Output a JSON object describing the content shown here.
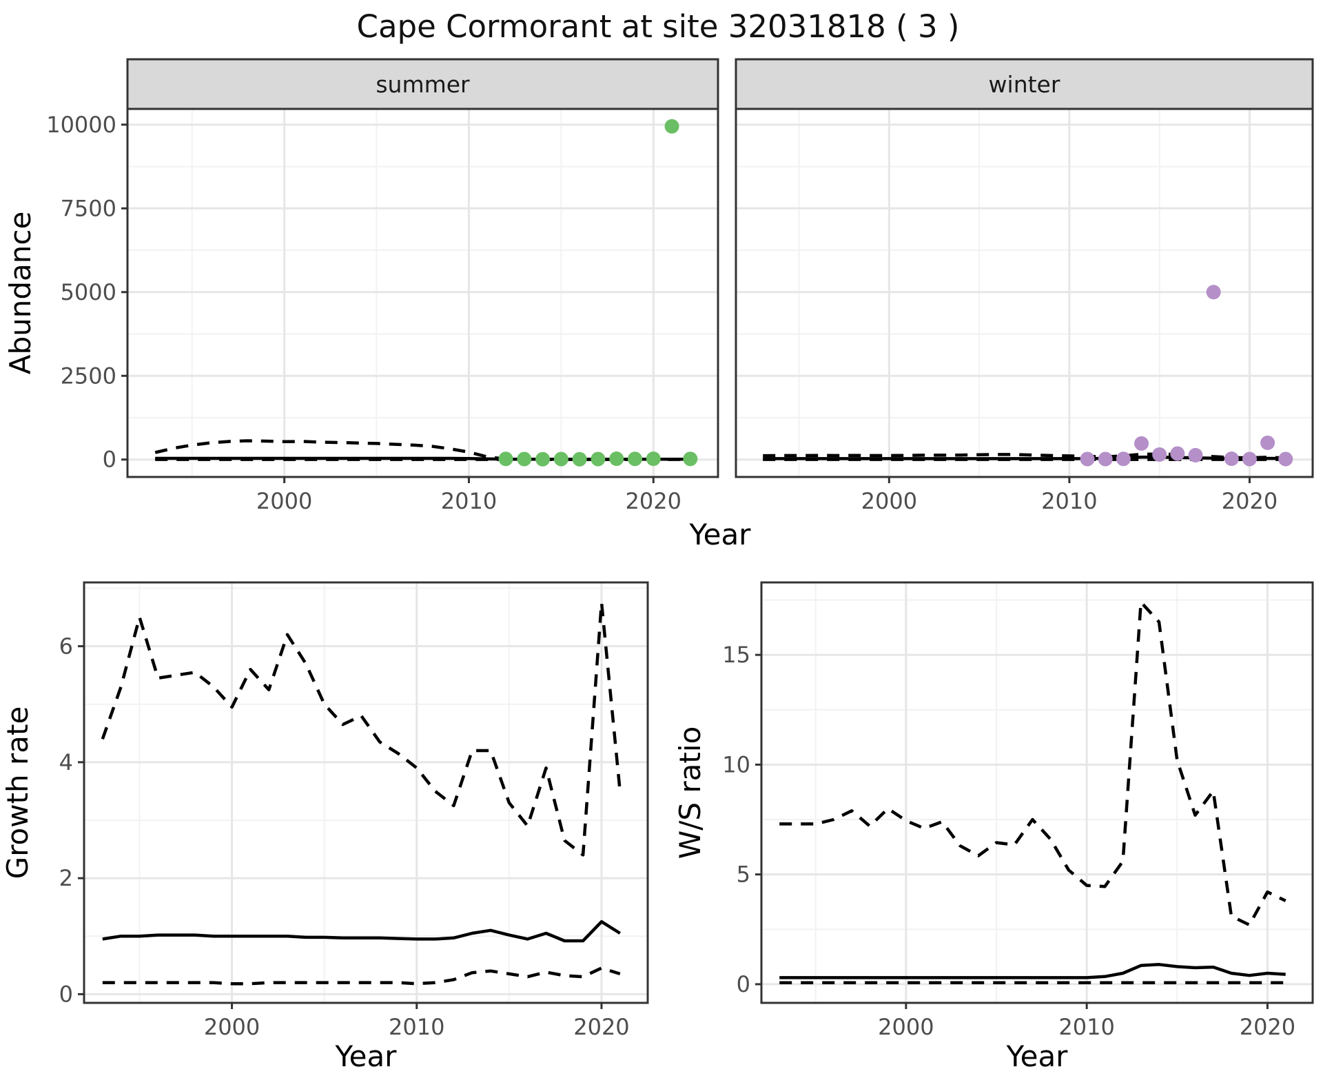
{
  "title": "Cape Cormorant at site 32031818 ( 3 )",
  "axes": {
    "abundance_ylabel": "Abundance",
    "top_xlabel": "Year",
    "growth_ylabel": "Growth rate",
    "growth_xlabel": "Year",
    "ws_ylabel": "W/S ratio",
    "ws_xlabel": "Year"
  },
  "colors": {
    "summer_points": "#6abf64",
    "winter_points": "#b48fc8",
    "line": "#000000",
    "strip_fill": "#d9d9d9",
    "panel_border": "#333333",
    "grid_major": "#e6e6e6",
    "grid_minor": "#f2f2f2",
    "tick_label": "#4d4d4d",
    "background": "#ffffff"
  },
  "chart_data": [
    {
      "id": "abundance_summer",
      "type": "line",
      "facet": "summer",
      "xlabel": "Year",
      "ylabel": "Abundance",
      "x_domain": [
        1991.5,
        2023.5
      ],
      "x_ticks": [
        2000,
        2010,
        2020
      ],
      "y_domain": [
        -520,
        10470
      ],
      "y_ticks": [
        0,
        2500,
        5000,
        7500,
        10000
      ],
      "grid": true,
      "legend": "none",
      "years": [
        1993,
        1994,
        1995,
        1996,
        1997,
        1998,
        1999,
        2000,
        2001,
        2002,
        2003,
        2004,
        2005,
        2006,
        2007,
        2008,
        2009,
        2010,
        2011,
        2012,
        2013,
        2014,
        2015,
        2016,
        2017,
        2018,
        2019,
        2020,
        2021,
        2022
      ],
      "series": [
        {
          "name": "upper_ci",
          "style": "dashed",
          "values": [
            210,
            340,
            430,
            500,
            540,
            560,
            550,
            535,
            540,
            520,
            510,
            495,
            480,
            455,
            430,
            395,
            320,
            220,
            80,
            15,
            8,
            8,
            8,
            8,
            8,
            8,
            8,
            8,
            8,
            8
          ]
        },
        {
          "name": "mean",
          "style": "solid",
          "values": [
            35,
            35,
            35,
            35,
            35,
            35,
            35,
            35,
            35,
            35,
            35,
            35,
            35,
            35,
            35,
            35,
            35,
            30,
            20,
            12,
            12,
            12,
            12,
            12,
            12,
            12,
            12,
            12,
            12,
            12
          ]
        },
        {
          "name": "lower_ci",
          "style": "dashed",
          "values": [
            2,
            2,
            2,
            2,
            2,
            2,
            2,
            2,
            2,
            2,
            2,
            2,
            2,
            2,
            2,
            2,
            2,
            2,
            2,
            2,
            2,
            2,
            2,
            2,
            2,
            2,
            2,
            2,
            2,
            2
          ]
        }
      ],
      "points": {
        "name": "observed_counts",
        "color_key": "summer_points",
        "x": [
          2012,
          2013,
          2014,
          2015,
          2016,
          2017,
          2018,
          2019,
          2020,
          2021,
          2022
        ],
        "y": [
          20,
          15,
          10,
          15,
          10,
          15,
          25,
          20,
          25,
          9950,
          20
        ]
      }
    },
    {
      "id": "abundance_winter",
      "type": "line",
      "facet": "winter",
      "xlabel": "Year",
      "ylabel": "Abundance",
      "x_domain": [
        1991.5,
        2023.5
      ],
      "x_ticks": [
        2000,
        2010,
        2020
      ],
      "y_domain": [
        -520,
        10470
      ],
      "y_ticks": [
        0,
        2500,
        5000,
        7500,
        10000
      ],
      "grid": true,
      "legend": "none",
      "years": [
        1993,
        1994,
        1995,
        1996,
        1997,
        1998,
        1999,
        2000,
        2001,
        2002,
        2003,
        2004,
        2005,
        2006,
        2007,
        2008,
        2009,
        2010,
        2011,
        2012,
        2013,
        2014,
        2015,
        2016,
        2017,
        2018,
        2019,
        2020,
        2021,
        2022
      ],
      "series": [
        {
          "name": "upper_ci",
          "style": "dashed",
          "values": [
            115,
            120,
            120,
            125,
            120,
            125,
            120,
            120,
            125,
            130,
            130,
            135,
            145,
            150,
            150,
            135,
            120,
            110,
            95,
            80,
            110,
            160,
            165,
            150,
            130,
            90,
            60,
            50,
            70,
            45
          ]
        },
        {
          "name": "mean",
          "style": "solid",
          "values": [
            28,
            28,
            28,
            28,
            28,
            28,
            28,
            28,
            28,
            28,
            28,
            28,
            28,
            28,
            28,
            28,
            28,
            28,
            28,
            35,
            55,
            70,
            70,
            60,
            50,
            40,
            32,
            30,
            35,
            30
          ]
        },
        {
          "name": "lower_ci",
          "style": "dashed",
          "values": [
            2,
            2,
            2,
            2,
            2,
            2,
            2,
            2,
            2,
            2,
            2,
            2,
            2,
            2,
            2,
            2,
            2,
            2,
            2,
            2,
            2,
            2,
            2,
            2,
            2,
            2,
            2,
            2,
            2,
            2
          ]
        }
      ],
      "points": {
        "name": "observed_counts",
        "color_key": "winter_points",
        "x": [
          2011,
          2012,
          2013,
          2014,
          2015,
          2016,
          2017,
          2018,
          2019,
          2020,
          2021,
          2022
        ],
        "y": [
          15,
          15,
          20,
          480,
          150,
          180,
          130,
          5000,
          25,
          15,
          500,
          15
        ]
      }
    },
    {
      "id": "growth_rate",
      "type": "line",
      "facet": null,
      "xlabel": "Year",
      "ylabel": "Growth rate",
      "x_domain": [
        1992,
        2022.5
      ],
      "x_ticks": [
        2000,
        2010,
        2020
      ],
      "y_domain": [
        -0.15,
        7.1
      ],
      "y_ticks": [
        0,
        2,
        4,
        6
      ],
      "grid": true,
      "legend": "none",
      "years": [
        1993,
        1994,
        1995,
        1996,
        1997,
        1998,
        1999,
        2000,
        2001,
        2002,
        2003,
        2004,
        2005,
        2006,
        2007,
        2008,
        2009,
        2010,
        2011,
        2012,
        2013,
        2014,
        2015,
        2016,
        2017,
        2018,
        2019,
        2020,
        2021
      ],
      "series": [
        {
          "name": "upper_ci",
          "style": "dashed",
          "values": [
            4.4,
            5.3,
            6.5,
            5.45,
            5.5,
            5.55,
            5.3,
            4.95,
            5.6,
            5.25,
            6.2,
            5.7,
            5.0,
            4.65,
            4.8,
            4.35,
            4.15,
            3.9,
            3.5,
            3.25,
            4.2,
            4.2,
            3.3,
            2.9,
            3.9,
            2.65,
            2.4,
            6.75,
            3.5
          ]
        },
        {
          "name": "mean",
          "style": "solid",
          "values": [
            0.95,
            1.0,
            1.0,
            1.02,
            1.02,
            1.02,
            1.0,
            1.0,
            1.0,
            1.0,
            1.0,
            0.98,
            0.98,
            0.97,
            0.97,
            0.97,
            0.96,
            0.95,
            0.95,
            0.97,
            1.05,
            1.1,
            1.02,
            0.95,
            1.05,
            0.92,
            0.92,
            1.25,
            1.05
          ]
        },
        {
          "name": "lower_ci",
          "style": "dashed",
          "values": [
            0.2,
            0.2,
            0.2,
            0.2,
            0.2,
            0.2,
            0.2,
            0.18,
            0.18,
            0.2,
            0.2,
            0.2,
            0.2,
            0.2,
            0.2,
            0.2,
            0.2,
            0.18,
            0.2,
            0.25,
            0.37,
            0.4,
            0.35,
            0.3,
            0.38,
            0.32,
            0.3,
            0.45,
            0.35
          ]
        }
      ],
      "points": null
    },
    {
      "id": "ws_ratio",
      "type": "line",
      "facet": null,
      "xlabel": "Year",
      "ylabel": "W/S ratio",
      "x_domain": [
        1992,
        2022.5
      ],
      "x_ticks": [
        2000,
        2010,
        2020
      ],
      "y_domain": [
        -0.85,
        18.3
      ],
      "y_ticks": [
        0,
        5,
        10,
        15
      ],
      "grid": true,
      "legend": "none",
      "years": [
        1993,
        1994,
        1995,
        1996,
        1997,
        1998,
        1999,
        2000,
        2001,
        2002,
        2003,
        2004,
        2005,
        2006,
        2007,
        2008,
        2009,
        2010,
        2011,
        2012,
        2013,
        2014,
        2015,
        2016,
        2017,
        2018,
        2019,
        2020,
        2021
      ],
      "series": [
        {
          "name": "upper_ci",
          "style": "dashed",
          "values": [
            7.3,
            7.3,
            7.3,
            7.5,
            7.9,
            7.2,
            8.0,
            7.45,
            7.1,
            7.4,
            6.3,
            5.85,
            6.45,
            6.35,
            7.5,
            6.6,
            5.2,
            4.5,
            4.45,
            5.6,
            17.4,
            16.5,
            10.2,
            7.7,
            8.8,
            3.1,
            2.7,
            4.2,
            3.8
          ]
        },
        {
          "name": "mean",
          "style": "solid",
          "values": [
            0.3,
            0.3,
            0.3,
            0.3,
            0.3,
            0.3,
            0.3,
            0.3,
            0.3,
            0.3,
            0.3,
            0.3,
            0.3,
            0.3,
            0.3,
            0.3,
            0.3,
            0.3,
            0.35,
            0.5,
            0.85,
            0.9,
            0.8,
            0.75,
            0.78,
            0.5,
            0.4,
            0.5,
            0.45
          ]
        },
        {
          "name": "lower_ci",
          "style": "dashed",
          "values": [
            0.07,
            0.07,
            0.07,
            0.07,
            0.07,
            0.07,
            0.07,
            0.07,
            0.07,
            0.07,
            0.07,
            0.07,
            0.07,
            0.07,
            0.07,
            0.07,
            0.07,
            0.07,
            0.07,
            0.07,
            0.07,
            0.07,
            0.07,
            0.07,
            0.07,
            0.07,
            0.07,
            0.07,
            0.07
          ]
        }
      ],
      "points": null
    }
  ]
}
